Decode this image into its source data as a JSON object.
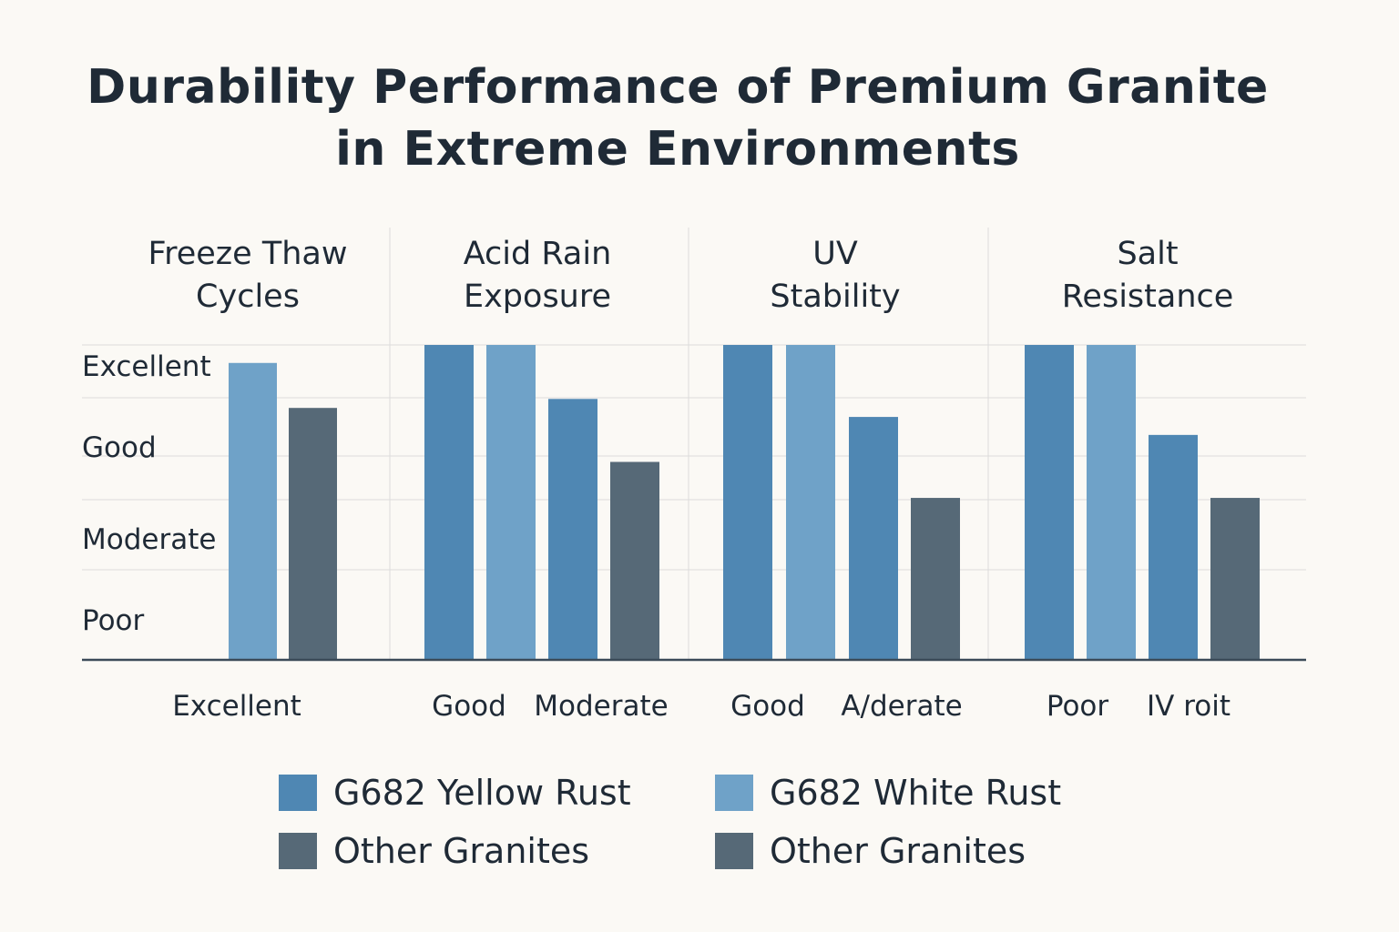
{
  "title_lines": [
    "Durability Performance of Premium Granite",
    "in Extreme Environments"
  ],
  "chart_data": {
    "type": "bar",
    "title": "Durability Performance of Premium Granite in Extreme Environments",
    "y_tick_labels": [
      "Excellent",
      "Good",
      "Moderate",
      "Poor"
    ],
    "y_tick_values": [
      3.4,
      2.5,
      1.5,
      0.5
    ],
    "ylim": [
      0,
      3.5
    ],
    "groups": [
      {
        "name": "Freeze Thaw Cycles",
        "name_lines": [
          "Freeze Thaw",
          "Cycles"
        ],
        "bars": [
          {
            "series": "G682 White Rust",
            "value": 3.3
          },
          {
            "series": "Other Granites",
            "value": 2.8
          }
        ],
        "x_labels": [
          "Excellent"
        ]
      },
      {
        "name": "Acid Rain Exposure",
        "name_lines": [
          "Acid Rain",
          "Exposure"
        ],
        "bars": [
          {
            "series": "G682 Yellow Rust",
            "value": 3.5
          },
          {
            "series": "G682 White Rust",
            "value": 3.5
          },
          {
            "series": "G682 Yellow Rust",
            "value": 2.9
          },
          {
            "series": "Other Granites",
            "value": 2.2
          }
        ],
        "x_labels": [
          "Good",
          "Moderate"
        ]
      },
      {
        "name": "UV Stability",
        "name_lines": [
          "UV",
          "Stability"
        ],
        "bars": [
          {
            "series": "G682 Yellow Rust",
            "value": 3.5
          },
          {
            "series": "G682 White Rust",
            "value": 3.5
          },
          {
            "series": "G682 Yellow Rust",
            "value": 2.7
          },
          {
            "series": "Other Granites",
            "value": 1.8
          }
        ],
        "x_labels": [
          "Good",
          "A/derate"
        ]
      },
      {
        "name": "Salt Resistance",
        "name_lines": [
          "Salt",
          "Resistance"
        ],
        "bars": [
          {
            "series": "G682 Yellow Rust",
            "value": 3.5
          },
          {
            "series": "G682 White Rust",
            "value": 3.5
          },
          {
            "series": "G682 Yellow Rust",
            "value": 2.5
          },
          {
            "series": "Other Granites",
            "value": 1.8
          }
        ],
        "x_labels": [
          "Poor",
          "IV roit"
        ]
      }
    ],
    "series_colors": {
      "G682 Yellow Rust": "#4f87b3",
      "G682 White Rust": "#6fa2c8",
      "Other Granites": "#566977"
    },
    "grid": true
  },
  "legend": [
    {
      "label": "G682 Yellow Rust",
      "color": "#4f87b3"
    },
    {
      "label": "G682 White Rust",
      "color": "#6fa2c8"
    },
    {
      "label": "Other Granites",
      "color": "#566977"
    },
    {
      "label": "Other Granites",
      "color": "#566977"
    }
  ]
}
